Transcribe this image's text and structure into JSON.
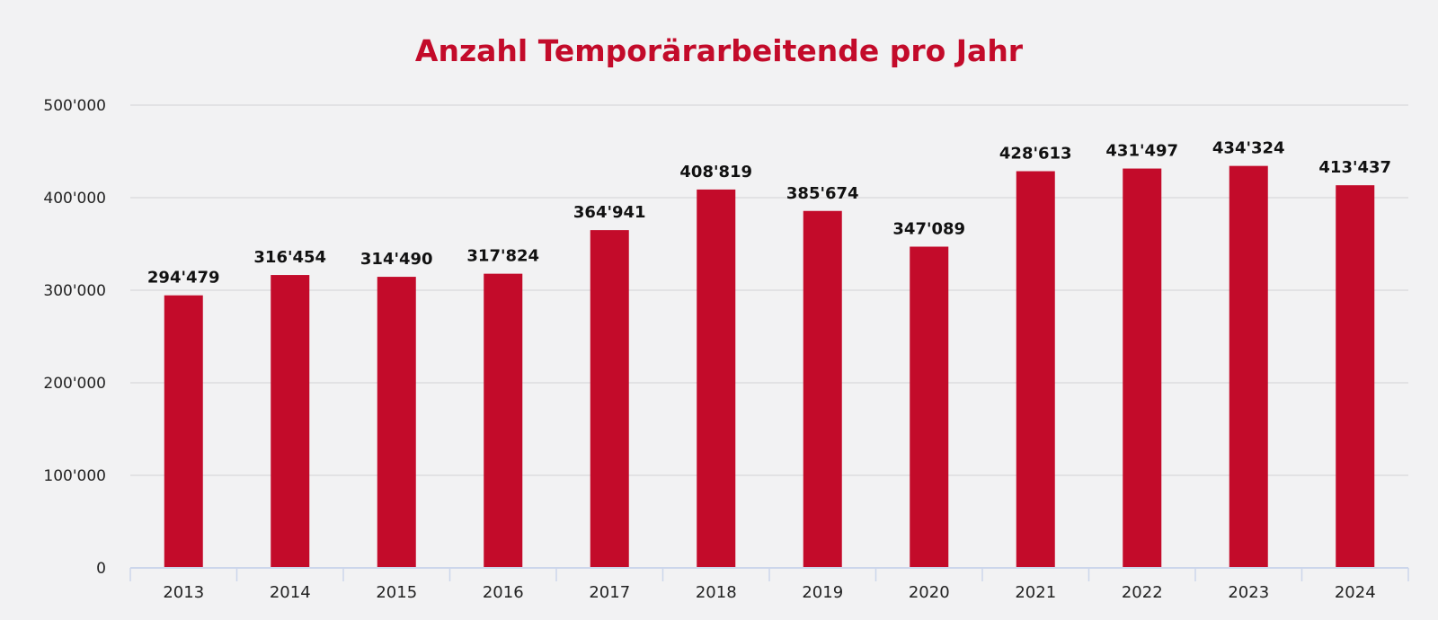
{
  "chart_data": {
    "type": "bar",
    "title": "Anzahl Temporärarbeitende pro Jahr",
    "xlabel": "",
    "ylabel": "",
    "categories": [
      "2013",
      "2014",
      "2015",
      "2016",
      "2017",
      "2018",
      "2019",
      "2020",
      "2021",
      "2022",
      "2023",
      "2024"
    ],
    "values": [
      294479,
      316454,
      314490,
      317824,
      364941,
      408819,
      385674,
      347089,
      428613,
      431497,
      434324,
      413437
    ],
    "data_labels": [
      "294'479",
      "316'454",
      "314'490",
      "317'824",
      "364'941",
      "408'819",
      "385'674",
      "347'089",
      "428'613",
      "431'497",
      "434'324",
      "413'437"
    ],
    "ylim": [
      0,
      500000
    ],
    "yticks": [
      0,
      100000,
      200000,
      300000,
      400000,
      500000
    ],
    "ytick_labels": [
      "0",
      "100'000",
      "200'000",
      "300'000",
      "400'000",
      "500'000"
    ],
    "grid": true,
    "legend": "none",
    "colors": {
      "bar": "#c30b2a",
      "title": "#c30b2a",
      "background": "#f2f2f3"
    }
  }
}
